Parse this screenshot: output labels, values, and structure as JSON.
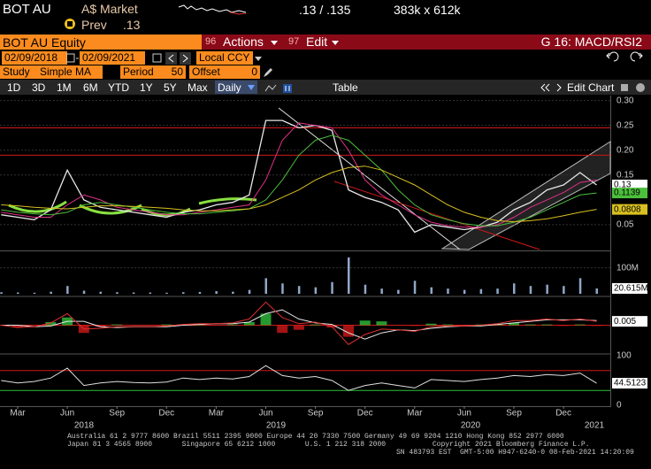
{
  "header": {
    "ticker": "BOT AU",
    "market": "A$ Market",
    "quote": ".13 / .135",
    "size": "383k x 612k",
    "prev_label": "Prev",
    "prev_value": ".13"
  },
  "titlebar": {
    "security": "BOT AU Equity",
    "actions_code": "96",
    "actions": "Actions",
    "edit_code": "97",
    "edit": "Edit",
    "template": "G 16: MACD/RSI2"
  },
  "settings": {
    "start": "02/09/2018",
    "end": "02/09/2021",
    "currency": "Local CCY",
    "study_label": "Study",
    "study": "Simple MA",
    "period_label": "Period",
    "period": "50",
    "offset_label": "Offset",
    "offset": "0"
  },
  "toolbar": {
    "ranges": [
      "1D",
      "3D",
      "1M",
      "6M",
      "YTD",
      "1Y",
      "5Y",
      "Max"
    ],
    "frequency": "Daily",
    "table": "Table",
    "edit_chart": "Edit Chart"
  },
  "chart_data": [
    {
      "type": "line",
      "categories": [
        null,
        "Mar",
        null,
        null,
        "Jun",
        null,
        null,
        "Sep",
        null,
        null,
        "Dec",
        null,
        null,
        "Mar",
        null,
        null,
        "Jun",
        null,
        null,
        "Sep",
        null,
        null,
        "Dec",
        null,
        null,
        "Mar",
        null,
        null,
        "Jun",
        null,
        null,
        "Sep",
        null,
        null,
        "Dec",
        null,
        null
      ],
      "years": [
        "2018",
        "2019",
        "2020",
        "2021"
      ],
      "ylim": [
        0,
        0.31
      ],
      "yticks": [
        {
          "value": 0.05,
          "label": "0.05"
        },
        {
          "value": 0.15,
          "label": "0.15"
        },
        {
          "value": 0.2,
          "label": "0.20"
        },
        {
          "value": 0.25,
          "label": "0.25"
        },
        {
          "value": 0.3,
          "label": "0.30"
        }
      ],
      "grid": true,
      "levels": [
        {
          "value": 0.245,
          "color": "#d01818"
        },
        {
          "value": 0.19,
          "color": "#d01818"
        }
      ],
      "series": [
        {
          "color": "#e8e8e8",
          "values": [
            0.07,
            0.065,
            0.06,
            0.08,
            0.16,
            0.1,
            0.085,
            0.08,
            0.075,
            0.07,
            0.065,
            0.075,
            0.08,
            0.09,
            0.095,
            0.11,
            0.26,
            0.26,
            0.245,
            0.25,
            0.24,
            0.12,
            0.105,
            0.095,
            0.08,
            0.035,
            0.05,
            0.045,
            0.04,
            0.045,
            0.055,
            0.08,
            0.095,
            0.12,
            0.13,
            0.155,
            0.13
          ]
        },
        {
          "color": "#e0308a",
          "values": [
            0.075,
            0.07,
            0.065,
            0.065,
            0.09,
            0.11,
            0.1,
            0.085,
            0.08,
            0.075,
            0.07,
            0.07,
            0.075,
            0.08,
            0.085,
            0.09,
            0.14,
            0.22,
            0.255,
            0.25,
            0.245,
            0.2,
            0.14,
            0.11,
            0.09,
            0.07,
            0.055,
            0.048,
            0.045,
            0.045,
            0.05,
            0.065,
            0.085,
            0.1,
            0.115,
            0.135,
            0.14
          ]
        },
        {
          "color": "#4cbf3c",
          "values": [
            0.08,
            0.075,
            0.072,
            0.07,
            0.075,
            0.09,
            0.095,
            0.09,
            0.085,
            0.08,
            0.075,
            0.072,
            0.072,
            0.075,
            0.078,
            0.082,
            0.1,
            0.14,
            0.19,
            0.22,
            0.23,
            0.22,
            0.19,
            0.16,
            0.12,
            0.09,
            0.07,
            0.06,
            0.052,
            0.048,
            0.048,
            0.055,
            0.065,
            0.08,
            0.095,
            0.11,
            0.1139
          ]
        },
        {
          "color": "#d8c020",
          "values": [
            0.09,
            0.088,
            0.085,
            0.083,
            0.082,
            0.085,
            0.088,
            0.088,
            0.087,
            0.085,
            0.083,
            0.08,
            0.078,
            0.078,
            0.08,
            0.082,
            0.09,
            0.105,
            0.12,
            0.14,
            0.155,
            0.165,
            0.168,
            0.16,
            0.145,
            0.13,
            0.11,
            0.09,
            0.075,
            0.065,
            0.058,
            0.056,
            0.058,
            0.062,
            0.068,
            0.075,
            0.0808
          ]
        }
      ],
      "last_labels": [
        {
          "value": 0.13,
          "label": "0.13",
          "color": "#ffffff"
        },
        {
          "value": 0.1139,
          "label": "0.1139",
          "color": "#4cbf3c"
        },
        {
          "value": 0.0808,
          "label": "0.0808",
          "color": "#d8c020"
        }
      ]
    },
    {
      "type": "bar",
      "color": "#8fa8c8",
      "ylim": [
        0,
        160000000
      ],
      "yticks": [
        {
          "value": 100000000,
          "label": "100M"
        }
      ],
      "grid": true,
      "values": [
        6000000,
        5000000,
        4000000,
        8000000,
        30000000,
        12000000,
        8000000,
        6000000,
        5000000,
        5000000,
        4000000,
        6000000,
        7000000,
        10000000,
        8000000,
        15000000,
        60000000,
        40000000,
        30000000,
        25000000,
        45000000,
        140000000,
        35000000,
        20000000,
        15000000,
        50000000,
        25000000,
        20000000,
        15000000,
        18000000,
        20000000,
        40000000,
        30000000,
        35000000,
        30000000,
        60000000,
        20615000
      ],
      "last_labels": [
        {
          "value": 20615000,
          "label": "20.615M",
          "color": "#ffffff"
        }
      ]
    },
    {
      "type": "line",
      "ylim": [
        -0.035,
        0.035
      ],
      "levels": [
        {
          "value": 0,
          "color": "#d01818"
        }
      ],
      "histogram": {
        "up": "#2ec03a",
        "down": "#d01818",
        "values": [
          0,
          -0.003,
          0,
          0.004,
          0.01,
          -0.01,
          -0.002,
          0.001,
          0,
          0,
          0.001,
          0.001,
          0.001,
          0,
          0.001,
          0.004,
          0.015,
          -0.01,
          -0.006,
          0.001,
          -0.003,
          -0.015,
          0.006,
          0.005,
          0,
          -0.001,
          0.002,
          0.001,
          0,
          0.001,
          0.001,
          0.003,
          0.001,
          0.001,
          -0.001,
          0.001,
          -0.001
        ]
      },
      "series": [
        {
          "color": "#e8e8e8",
          "values": [
            0,
            0,
            -0.002,
            -0.001,
            0.005,
            0.005,
            -0.002,
            -0.003,
            -0.002,
            -0.002,
            -0.002,
            0,
            0.001,
            0.002,
            0.002,
            0.004,
            0.015,
            0.02,
            0.008,
            0.003,
            0.001,
            -0.01,
            -0.018,
            -0.01,
            -0.006,
            -0.007,
            -0.004,
            -0.002,
            -0.001,
            -0.001,
            0.001,
            0.003,
            0.005,
            0.007,
            0.007,
            0.007,
            0.006
          ]
        },
        {
          "color": "#e03030",
          "values": [
            0,
            -0.003,
            -0.002,
            0.003,
            0.015,
            -0.005,
            -0.004,
            -0.002,
            -0.002,
            -0.002,
            -0.001,
            0.001,
            0.002,
            0.002,
            0.003,
            0.008,
            0.03,
            0.01,
            0.002,
            0.004,
            -0.002,
            -0.025,
            -0.012,
            -0.005,
            -0.006,
            -0.008,
            -0.002,
            -0.001,
            -0.001,
            0,
            0.002,
            0.006,
            0.006,
            0.008,
            0.006,
            0.008,
            0.005
          ]
        }
      ],
      "last_labels": [
        {
          "value": 0.005,
          "label": "0.005",
          "color": "#ffffff"
        }
      ]
    },
    {
      "type": "line",
      "ylim": [
        0,
        100
      ],
      "yticks": [
        0,
        100
      ],
      "levels": [
        {
          "value": 70,
          "color": "#d01818"
        },
        {
          "value": 30,
          "color": "#2ec03a"
        }
      ],
      "series": [
        {
          "color": "#e0e0e0",
          "values": [
            50,
            45,
            48,
            55,
            75,
            40,
            45,
            48,
            46,
            45,
            47,
            55,
            52,
            55,
            53,
            58,
            80,
            60,
            55,
            58,
            50,
            30,
            40,
            45,
            40,
            35,
            52,
            50,
            48,
            52,
            55,
            60,
            58,
            62,
            60,
            65,
            44.5123
          ]
        }
      ],
      "last_labels": [
        {
          "value": 44.5123,
          "label": "44.5123",
          "color": "#ffffff"
        }
      ]
    }
  ],
  "footer": {
    "lines": [
      "Australia 61 2 9777 8600 Brazil 5511 2395 9000 Europe 44 20 7330 7500 Germany 49 69 9204 1210 Hong Kong 852 2977 6000",
      "Japan 81 3 4565 8900       Singapore 65 6212 1000       U.S. 1 212 318 2000           Copyright 2021 Bloomberg Finance L.P.",
      "SN 483793 EST  GMT-5:00 H947-6240-0 08-Feb-2021 14:20:09"
    ]
  }
}
